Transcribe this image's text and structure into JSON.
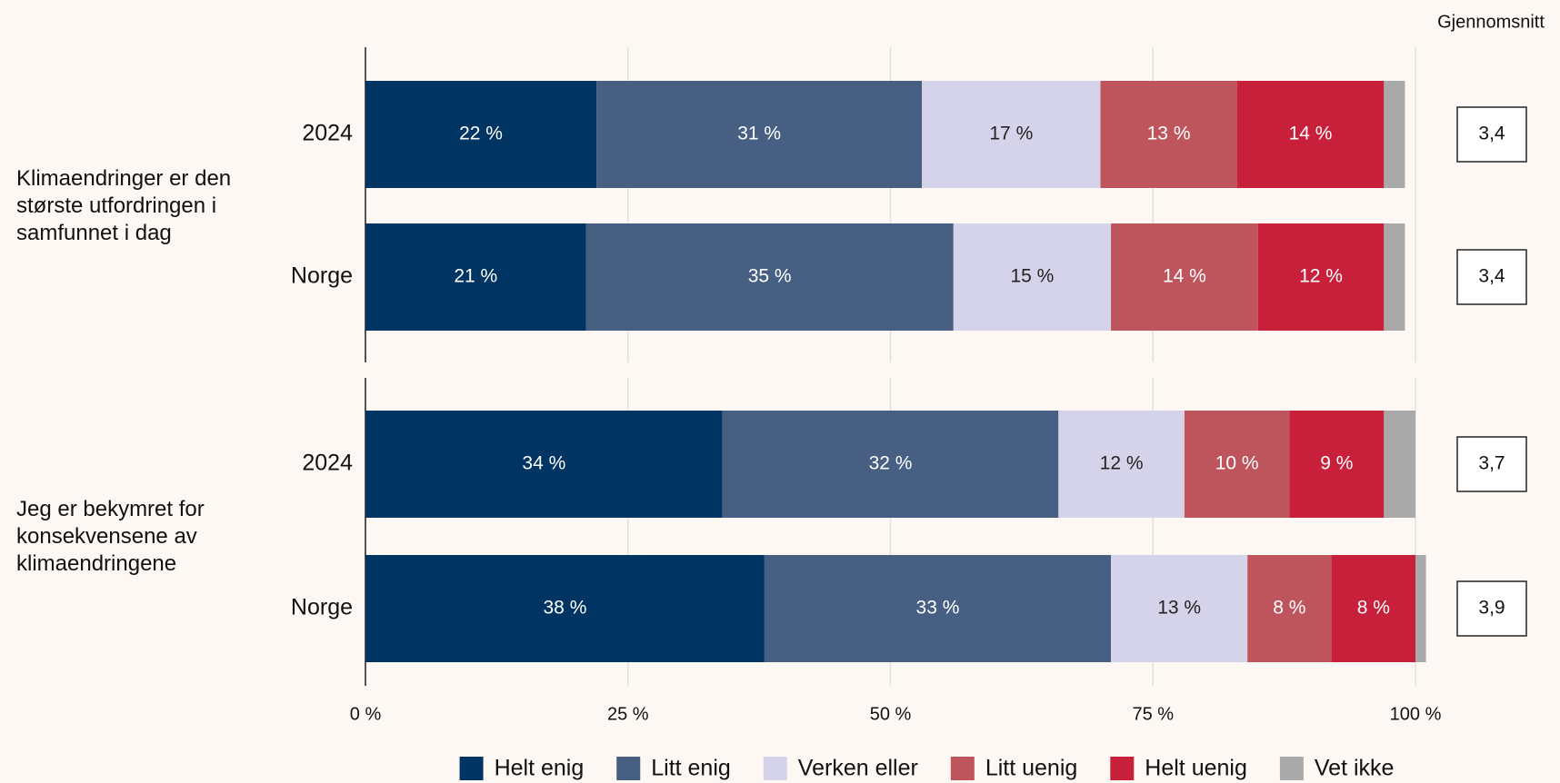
{
  "chart_data": {
    "type": "stacked-bar-horizontal",
    "groups": [
      "Klimaendringer er den største utfordringen i samfunnet i dag",
      "Jeg er bekymret for konsekvensene av klimaendringene"
    ],
    "categories": [
      "2024",
      "Norge",
      "2024",
      "Norge"
    ],
    "series": [
      {
        "name": "Helt enig",
        "color": "#003462",
        "label_color": "#ffffff",
        "values": [
          22,
          21,
          34,
          38
        ],
        "value_labels": [
          "22 %",
          "21 %",
          "34 %",
          "38 %"
        ]
      },
      {
        "name": "Litt enig",
        "color": "#465f82",
        "label_color": "#ffffff",
        "values": [
          31,
          35,
          32,
          33
        ],
        "value_labels": [
          "31 %",
          "35 %",
          "32 %",
          "33 %"
        ]
      },
      {
        "name": "Verken eller",
        "color": "#d4d3e9",
        "label_color": "#222222",
        "values": [
          17,
          15,
          12,
          13
        ],
        "value_labels": [
          "17 %",
          "15 %",
          "12 %",
          "13 %"
        ]
      },
      {
        "name": "Litt uenig",
        "color": "#bf555c",
        "label_color": "#ffffff",
        "values": [
          13,
          14,
          10,
          8
        ],
        "value_labels": [
          "13 %",
          "14 %",
          "10 %",
          "8 %"
        ]
      },
      {
        "name": "Helt uenig",
        "color": "#c8203a",
        "label_color": "#ffffff",
        "values": [
          14,
          12,
          9,
          8
        ],
        "value_labels": [
          "14 %",
          "12 %",
          "9 %",
          "8 %"
        ]
      },
      {
        "name": "Vet ikke",
        "color": "#a9a9a9",
        "values": [
          2,
          2,
          3,
          1
        ]
      }
    ],
    "averages": {
      "title": "Gjennomsnitt",
      "values": [
        3.4,
        3.4,
        3.7,
        3.9
      ],
      "value_labels": [
        "3,4",
        "3,4",
        "3,7",
        "3,9"
      ]
    },
    "xlim": [
      0,
      100
    ],
    "xticks": [
      {
        "value": 0,
        "label": "0 %"
      },
      {
        "value": 25,
        "label": "25 %"
      },
      {
        "value": 50,
        "label": "50 %"
      },
      {
        "value": 75,
        "label": "75 %"
      },
      {
        "value": 100,
        "label": "100 %"
      }
    ],
    "grid": true
  }
}
